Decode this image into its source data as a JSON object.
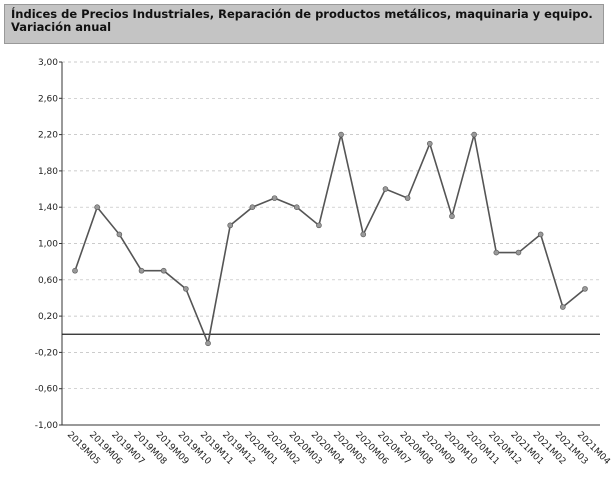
{
  "chart_data": {
    "type": "line",
    "title": "Índices de Precios Industriales, Reparación de productos metálicos, maquinaria y equipo. Variación anual",
    "categories": [
      "2019M05",
      "2019M06",
      "2019M07",
      "2019M08",
      "2019M09",
      "2019M10",
      "2019M11",
      "2019M12",
      "2020M01",
      "2020M02",
      "2020M03",
      "2020M04",
      "2020M05",
      "2020M06",
      "2020M07",
      "2020M08",
      "2020M09",
      "2020M10",
      "2020M11",
      "2020M12",
      "2021M01",
      "2021M02",
      "2021M03",
      "2021M04"
    ],
    "series": [
      {
        "color": "#555555",
        "values": [
          0.7,
          1.4,
          1.1,
          0.7,
          0.7,
          0.5,
          -0.1,
          1.2,
          1.4,
          1.5,
          1.4,
          1.2,
          2.2,
          1.1,
          1.6,
          1.5,
          2.1,
          1.3,
          2.2,
          0.9,
          0.9,
          1.1,
          0.3,
          0.5
        ]
      }
    ],
    "ylim": [
      -1,
      3
    ],
    "yticks": [
      {
        "value": -1,
        "label": "-1,00"
      },
      {
        "value": -0.6,
        "label": "-0,60"
      },
      {
        "value": -0.2,
        "label": "-0,20"
      },
      {
        "value": 0.2,
        "label": "0,20"
      },
      {
        "value": 0.6,
        "label": "0,60"
      },
      {
        "value": 1,
        "label": "1,00"
      },
      {
        "value": 1.4,
        "label": "1,40"
      },
      {
        "value": 1.8,
        "label": "1,80"
      },
      {
        "value": 2.2,
        "label": "2,20"
      },
      {
        "value": 2.6,
        "label": "2,60"
      },
      {
        "value": 3,
        "label": "3,00"
      }
    ],
    "grid": true
  }
}
